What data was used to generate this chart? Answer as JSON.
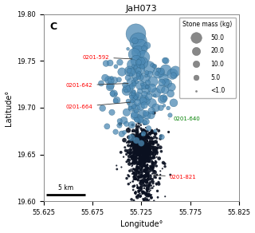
{
  "title": "JaH073",
  "xlabel": "Longitude°",
  "ylabel": "Latitude°",
  "xlim": [
    55.625,
    55.825
  ],
  "ylim": [
    19.6,
    19.8
  ],
  "xticks": [
    55.625,
    55.675,
    55.725,
    55.775,
    55.825
  ],
  "yticks": [
    19.6,
    19.65,
    19.7,
    19.75,
    19.8
  ],
  "panel_label": "C",
  "legend_title": "Stone mass (kg)",
  "legend_sizes": [
    50.0,
    20.0,
    10.0,
    5.0,
    0.5
  ],
  "legend_labels": [
    "50.0",
    "20.0",
    "10.0",
    "5.0",
    "<1.0"
  ],
  "scale_bar_lon": [
    55.628,
    55.668
  ],
  "scale_bar_lat": 19.607,
  "scale_bar_label": "5 km",
  "annotations": [
    {
      "label": "0201-592",
      "lon": 55.718,
      "lat": 19.752,
      "color": "red",
      "text_lon": 55.665,
      "text_lat": 19.754
    },
    {
      "label": "0201-642",
      "lon": 55.714,
      "lat": 19.726,
      "color": "red",
      "text_lon": 55.648,
      "text_lat": 19.724
    },
    {
      "label": "0201-664",
      "lon": 55.716,
      "lat": 19.706,
      "color": "red",
      "text_lon": 55.648,
      "text_lat": 19.701
    },
    {
      "label": "0201-640",
      "lon": 55.751,
      "lat": 19.688,
      "color": "green",
      "text_lon": 55.758,
      "text_lat": 19.688
    },
    {
      "label": "0201-821",
      "lon": 55.735,
      "lat": 19.628,
      "color": "red",
      "text_lon": 55.754,
      "text_lat": 19.626
    }
  ],
  "blue_color": "#4d8ab5",
  "blue_edge": "#2a5f80",
  "dark_color": "#0a1020",
  "size_scale": 30
}
